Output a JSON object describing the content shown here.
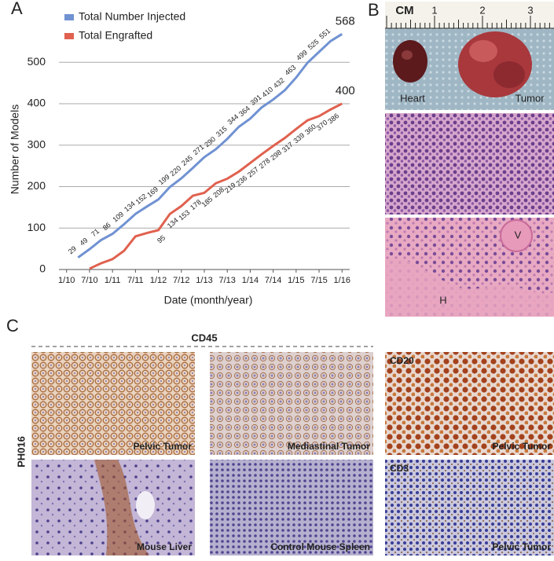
{
  "panels": {
    "a": "A",
    "b": "B",
    "c": "C"
  },
  "chart_data": {
    "type": "line",
    "x_label": "Date (month/year)",
    "y_label": "Number of Models",
    "x": [
      "4/10",
      "7/10",
      "10/10",
      "1/11",
      "4/11",
      "7/11",
      "10/11",
      "1/12",
      "4/12",
      "7/12",
      "10/12",
      "1/13",
      "4/13",
      "7/13",
      "10/13",
      "1/14",
      "4/14",
      "7/14",
      "10/14",
      "1/15",
      "4/15",
      "7/15",
      "10/15",
      "1/16"
    ],
    "series": [
      {
        "name": "Total Number Injected",
        "color": "#7092d2",
        "values": [
          29,
          49,
          71,
          86,
          109,
          134,
          152,
          169,
          199,
          220,
          245,
          271,
          290,
          315,
          344,
          364,
          391,
          410,
          432,
          463,
          499,
          525,
          551,
          568
        ]
      },
      {
        "name": "Total Engrafted",
        "color": "#e0614f",
        "values": [
          null,
          2,
          15,
          25,
          45,
          80,
          88,
          95,
          134,
          153,
          178,
          185,
          208,
          219,
          236,
          257,
          278,
          298,
          317,
          339,
          360,
          370,
          386,
          400
        ],
        "value_labels": [
          null,
          null,
          null,
          null,
          null,
          null,
          null,
          "95",
          "134",
          "153",
          "178",
          "185",
          "208",
          "219",
          "236",
          "257",
          "278",
          "298",
          "317",
          "339",
          "360",
          "370",
          "386",
          "400"
        ]
      }
    ],
    "xlim": [
      "11/09",
      "3/16"
    ],
    "xticks": [
      "1/10",
      "7/10",
      "1/11",
      "7/11",
      "1/12",
      "7/12",
      "1/13",
      "7/13",
      "1/14",
      "7/14",
      "1/15",
      "7/15",
      "1/16"
    ],
    "ylim": [
      0,
      580
    ],
    "yticks": [
      0,
      100,
      200,
      300,
      400,
      500
    ],
    "grid": true,
    "legend": "upper left"
  },
  "panel_b": {
    "ruler_unit": "CM",
    "ruler_ticks": [
      "1",
      "2",
      "3"
    ],
    "photo_labels": [
      "Heart",
      "Tumor"
    ],
    "histology_labels": [
      "V",
      "H"
    ]
  },
  "panel_c": {
    "group_label": "CD45",
    "row_label": "PH016",
    "tiles": [
      {
        "caption": "Pelvic Tumor"
      },
      {
        "caption": "Mediastinal Tumor"
      },
      {
        "marker": "CD20",
        "caption": "Pelvic Tumor"
      },
      {
        "caption": "Mouse Liver"
      },
      {
        "caption": "Control Mouse Spleen"
      },
      {
        "marker": "CD3",
        "caption": "Pelvic Tumor"
      }
    ]
  }
}
